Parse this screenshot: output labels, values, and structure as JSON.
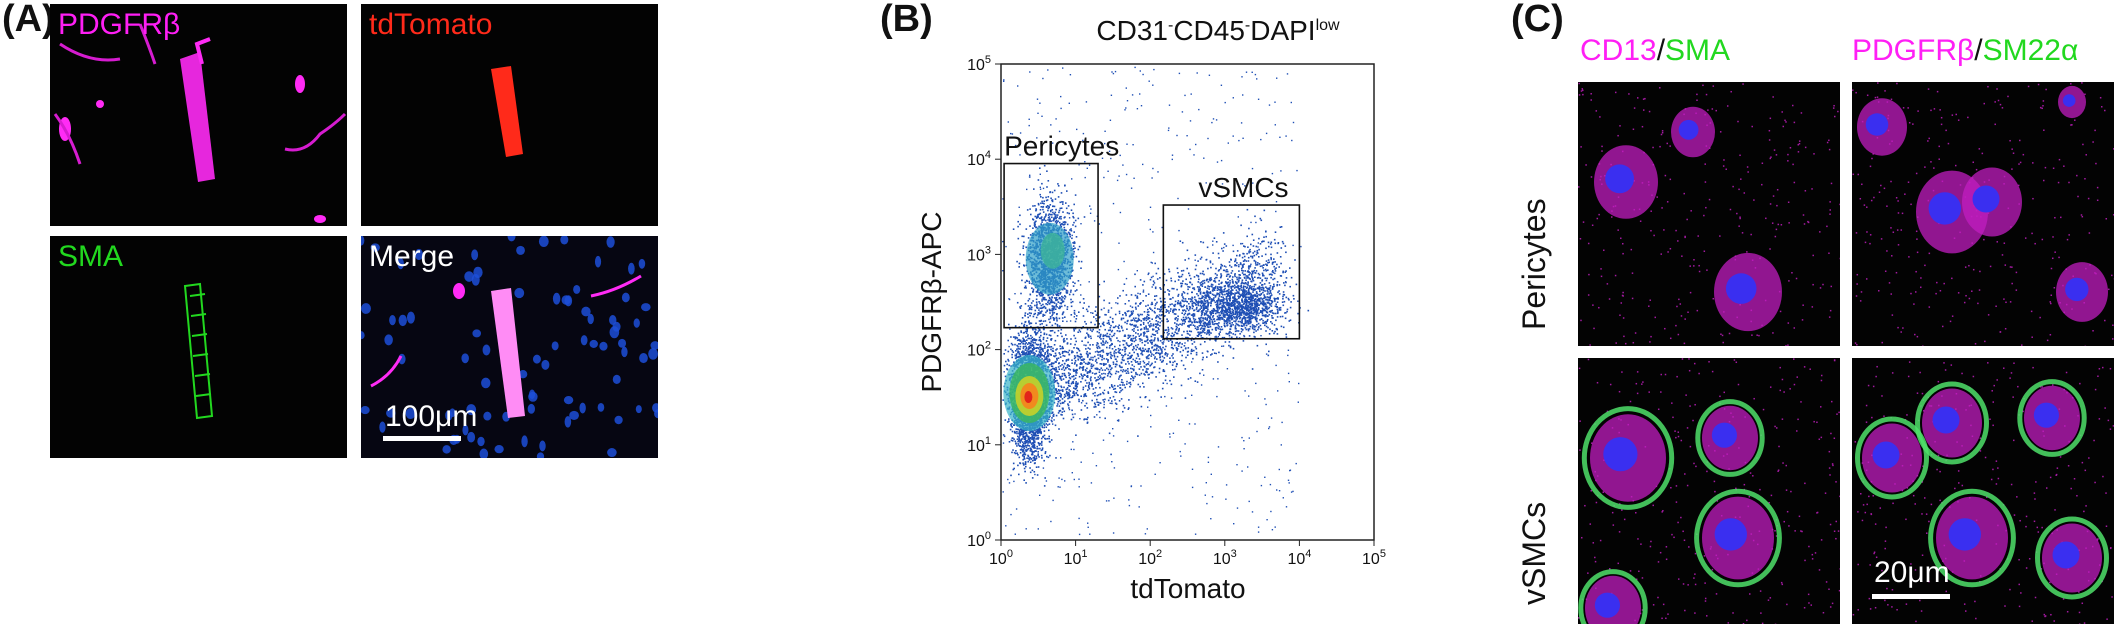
{
  "panels": {
    "A": {
      "letter": "(A)",
      "images": [
        {
          "label": "PDGFRβ",
          "color": "#ff1ff5"
        },
        {
          "label": "tdTomato",
          "color": "#ff2a1a"
        },
        {
          "label": "SMA",
          "color": "#22d81f"
        },
        {
          "label": "Merge",
          "color": "#ffffff",
          "scalebar": "100μm"
        }
      ]
    },
    "B": {
      "letter": "(B)",
      "title_parts": [
        "CD31",
        "-",
        "CD45",
        "-",
        "DAPI",
        "low"
      ],
      "chart_data": {
        "type": "scatter",
        "xlabel": "tdTomato",
        "ylabel": "PDGFRβ-APC",
        "xscale": "log",
        "yscale": "log",
        "xlim": [
          1,
          100000
        ],
        "ylim": [
          1,
          100000
        ],
        "x_ticks": [
          {
            "base": "10",
            "exp": "0"
          },
          {
            "base": "10",
            "exp": "1"
          },
          {
            "base": "10",
            "exp": "2"
          },
          {
            "base": "10",
            "exp": "3"
          },
          {
            "base": "10",
            "exp": "4"
          },
          {
            "base": "10",
            "exp": "5"
          }
        ],
        "y_ticks": [
          {
            "base": "10",
            "exp": "0"
          },
          {
            "base": "10",
            "exp": "1"
          },
          {
            "base": "10",
            "exp": "2"
          },
          {
            "base": "10",
            "exp": "3"
          },
          {
            "base": "10",
            "exp": "4"
          },
          {
            "base": "10",
            "exp": "5"
          }
        ],
        "gates": [
          {
            "name": "Pericytes",
            "x": [
              1.1,
              20
            ],
            "y": [
              170,
              9000
            ]
          },
          {
            "name": "vSMCs",
            "x": [
              150,
              10000
            ],
            "y": [
              130,
              3300
            ]
          }
        ],
        "populations": [
          {
            "center_x": 2.4,
            "center_y": 35,
            "level": "high"
          },
          {
            "center_x": 4.5,
            "center_y": 900,
            "level": "medium"
          }
        ]
      }
    },
    "C": {
      "letter": "(C)",
      "col_headers": [
        [
          {
            "text": "CD13",
            "color": "#ff1ff5"
          },
          {
            "text": "/",
            "color": "#111111"
          },
          {
            "text": "SMA",
            "color": "#22d81f"
          }
        ],
        [
          {
            "text": "PDGFRβ",
            "color": "#ff1ff5"
          },
          {
            "text": "/",
            "color": "#111111"
          },
          {
            "text": "SM22α",
            "color": "#22d81f"
          }
        ]
      ],
      "row_labels": [
        "Pericytes",
        "vSMCs"
      ],
      "scalebar": "20μm"
    }
  }
}
